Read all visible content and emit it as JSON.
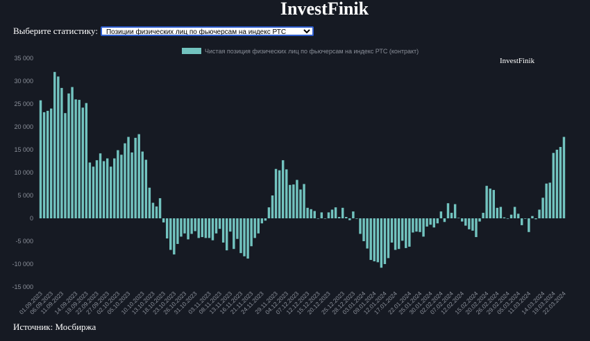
{
  "app": {
    "title": "InvestFinik"
  },
  "picker": {
    "label": "Выберите статистику:",
    "selected": "Позиции физических лиц по фьючерсам на индекс РТС"
  },
  "footer": {
    "source": "Источник: Мосбиржа"
  },
  "colors": {
    "bar": "#72c3bf",
    "axis_text": "#8a8f99",
    "background": "#161a23"
  },
  "chart_data": {
    "type": "bar",
    "watermark": "InvestFinik",
    "legend_position": "top-center",
    "grid": false,
    "ylim": [
      -15000,
      35000
    ],
    "yticks": [
      -15000,
      -10000,
      -5000,
      0,
      5000,
      10000,
      15000,
      20000,
      25000,
      30000,
      35000
    ],
    "ytick_labels": [
      "-15 000",
      "-10 000",
      "-5 000",
      "0",
      "5 000",
      "10 000",
      "15 000",
      "20 000",
      "25 000",
      "30 000",
      "35 000"
    ],
    "xtick_labels": [
      "01.09.2023",
      "06.09.2023",
      "11.09.2023",
      "14.09.2023",
      "19.09.2023",
      "22.09.2023",
      "27.09.2023",
      "02.10.2023",
      "05.10.2023",
      "10.10.2023",
      "13.10.2023",
      "18.10.2023",
      "23.10.2023",
      "26.10.2023",
      "31.10.2023",
      "03.11.2023",
      "08.11.2023",
      "13.11.2023",
      "16.11.2023",
      "21.11.2023",
      "24.11.2023",
      "29.11.2023",
      "04.12.2023",
      "07.12.2023",
      "12.12.2023",
      "15.12.2023",
      "20.12.2023",
      "25.12.2023",
      "28.12.2023",
      "03.01.2024",
      "09.01.2024",
      "12.01.2024",
      "17.01.2024",
      "22.01.2024",
      "25.01.2024",
      "30.01.2024",
      "02.02.2024",
      "07.02.2024",
      "12.02.2024",
      "15.02.2024",
      "20.02.2024",
      "26.02.2024",
      "29.02.2024",
      "05.03.2024",
      "11.03.2024",
      "14.03.2024",
      "19.03.2024",
      "22.03.2024"
    ],
    "series": [
      {
        "name": "Чистая позиция физических лиц по фьючерсам на индекс РТС (контракт)",
        "values": [
          25800,
          23200,
          23500,
          24000,
          32000,
          31000,
          28500,
          23000,
          27300,
          28700,
          26000,
          25900,
          24200,
          25200,
          12200,
          11300,
          12700,
          14200,
          12500,
          13100,
          11300,
          13100,
          14900,
          13900,
          16400,
          17800,
          14400,
          17600,
          18400,
          14600,
          12800,
          6700,
          3400,
          2600,
          4400,
          -900,
          -4400,
          -6900,
          -7900,
          -5600,
          -4000,
          -3300,
          -4600,
          -3400,
          -2800,
          -4300,
          -4100,
          -4300,
          -4300,
          -4800,
          -3300,
          -2300,
          -5300,
          -7000,
          -2900,
          -6700,
          -4500,
          -7600,
          -8300,
          -8800,
          -6100,
          -4300,
          -3300,
          -1100,
          -500,
          2400,
          5000,
          10800,
          10500,
          12700,
          10700,
          7300,
          7400,
          8400,
          6300,
          7500,
          2300,
          2000,
          1600,
          0,
          1300,
          0,
          1300,
          1900,
          2400,
          300,
          2300,
          300,
          -400,
          1500,
          -100,
          -3400,
          -5000,
          -6600,
          -9100,
          -9400,
          -9600,
          -10800,
          -10000,
          -8700,
          -5300,
          -6900,
          -6700,
          -4900,
          -6500,
          -6200,
          -3100,
          -2900,
          -3000,
          -4000,
          -1800,
          -1400,
          -2000,
          -1100,
          1500,
          -800,
          3300,
          1200,
          3100,
          100,
          -700,
          -1600,
          -2400,
          -2700,
          -4100,
          -700,
          1200,
          7100,
          6500,
          6200,
          2300,
          2500,
          200,
          -100,
          800,
          2500,
          1000,
          -1500,
          -100,
          -3000,
          500,
          -200,
          1900,
          4500,
          7600,
          7800,
          14300,
          15000,
          15600,
          17800
        ]
      }
    ]
  }
}
